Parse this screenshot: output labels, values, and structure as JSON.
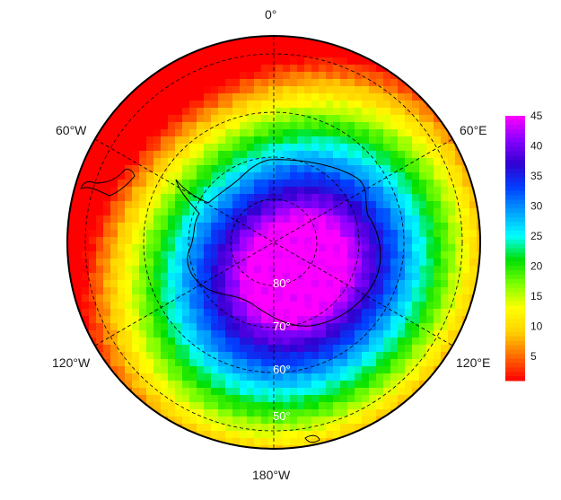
{
  "map": {
    "projection": "south-polar-stereographic",
    "longitude_labels": {
      "top": "0°",
      "upper_left": "60°W",
      "upper_right": "60°E",
      "lower_left": "120°W",
      "lower_right": "120°E",
      "bottom": "180°W"
    },
    "latitude_labels": [
      "80°",
      "70°",
      "60°",
      "50°"
    ],
    "field": {
      "description_value_center": 45,
      "edge_value": 1,
      "peak_direction": "toward 150°E-180°",
      "annular_gradient": true
    }
  },
  "colorbar": {
    "ticks": [
      "5",
      "10",
      "15",
      "20",
      "25",
      "30",
      "35",
      "40",
      "45"
    ],
    "min": 1,
    "max": 45,
    "colormap": [
      "#ff0000",
      "#ff6a00",
      "#ffd000",
      "#ffff00",
      "#7fff00",
      "#00e000",
      "#00ffff",
      "#00a0ff",
      "#0040ff",
      "#3000d0",
      "#8a00ff",
      "#ff00ff"
    ]
  }
}
